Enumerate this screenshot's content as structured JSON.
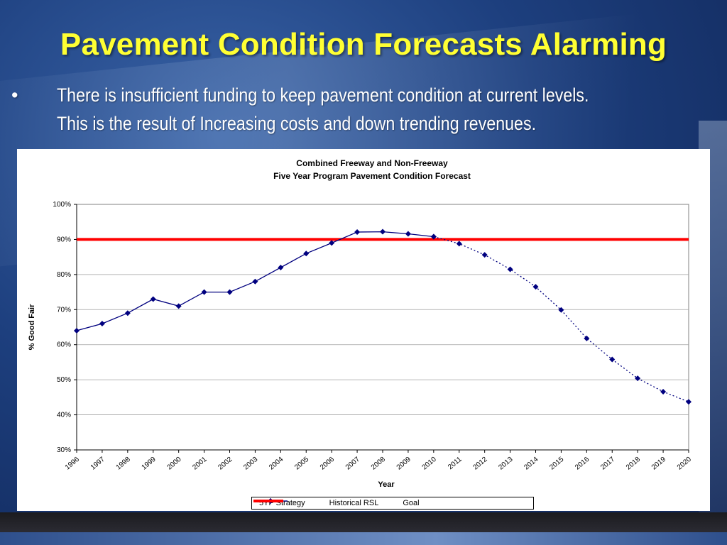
{
  "slide": {
    "title": "Pavement Condition Forecasts Alarming",
    "bullet_symbol": "•",
    "bullet_lines": [
      "There is insufficient funding to keep pavement condition at current levels.",
      "This is the result of Increasing costs and down trending revenues."
    ]
  },
  "colors": {
    "title": "#ffff33",
    "series": "#00007f",
    "goal": "#ff0000"
  },
  "chart_data": {
    "type": "line",
    "title": "Combined Freeway and Non-Freeway",
    "subtitle": "Five Year Program Pavement Condition Forecast",
    "xlabel": "Year",
    "ylabel": "% Good Fair",
    "categories": [
      "1996",
      "1997",
      "1998",
      "1999",
      "2000",
      "2001",
      "2002",
      "2003",
      "2004",
      "2005",
      "2006",
      "2007",
      "2008",
      "2009",
      "2010",
      "2011",
      "2012",
      "2013",
      "2014",
      "2015",
      "2016",
      "2017",
      "2018",
      "2019",
      "2020"
    ],
    "y_ticks": [
      "30%",
      "40%",
      "50%",
      "60%",
      "70%",
      "80%",
      "90%",
      "100%"
    ],
    "ylim": [
      30,
      100
    ],
    "grid": true,
    "legend_position": "bottom",
    "series": [
      {
        "name": "5YP Strategy",
        "style": "dotted-with-markers",
        "values": [
          null,
          null,
          null,
          null,
          null,
          null,
          null,
          null,
          null,
          null,
          null,
          null,
          null,
          null,
          90.8,
          88.8,
          85.6,
          81.5,
          76.5,
          69.9,
          61.8,
          55.8,
          50.4,
          46.6,
          43.7
        ]
      },
      {
        "name": "Historical RSL",
        "style": "solid-with-markers",
        "values": [
          64,
          66,
          69,
          73,
          71,
          75,
          75,
          78,
          82,
          86,
          89,
          92.1,
          92.2,
          91.6,
          90.8,
          null,
          null,
          null,
          null,
          null,
          null,
          null,
          null,
          null,
          null
        ]
      },
      {
        "name": "Goal",
        "style": "thick-solid",
        "constant": 90
      }
    ]
  }
}
